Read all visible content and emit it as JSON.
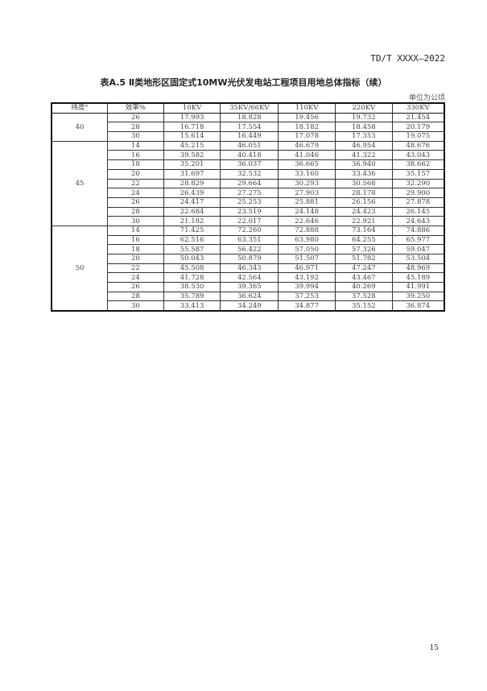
{
  "header": {
    "doc_code": "TD/T XXXX—2022"
  },
  "table": {
    "title": "表A.5 Ⅱ类地形区固定式10MW光伏发电站工程项目用地总体指标（续）",
    "unit": "单位为公顷",
    "columns": [
      "纬度°",
      "效率%",
      "10KV",
      "35KV/66KV",
      "110KV",
      "220KV",
      "330KV"
    ],
    "groups": [
      {
        "latitude": "40",
        "rows": [
          [
            "26",
            "17.993",
            "18.828",
            "19.456",
            "19.732",
            "21.454"
          ],
          [
            "28",
            "16.718",
            "17.554",
            "18.182",
            "18.458",
            "20.179"
          ],
          [
            "30",
            "15.614",
            "16.449",
            "17.078",
            "17.353",
            "19.075"
          ]
        ]
      },
      {
        "latitude": "45",
        "rows": [
          [
            "14",
            "45.215",
            "46.051",
            "46.679",
            "46.954",
            "48.676"
          ],
          [
            "16",
            "39.582",
            "40.418",
            "41.046",
            "41.322",
            "43.043"
          ],
          [
            "18",
            "35.201",
            "36.037",
            "36.665",
            "36.940",
            "38.662"
          ],
          [
            "20",
            "31.697",
            "32.532",
            "33.160",
            "33.436",
            "35.157"
          ],
          [
            "22",
            "28.829",
            "29.664",
            "30.293",
            "30.568",
            "32.290"
          ],
          [
            "24",
            "26.439",
            "27.275",
            "27.903",
            "28.178",
            "29.900"
          ],
          [
            "26",
            "24.417",
            "25.253",
            "25.881",
            "26.156",
            "27.878"
          ],
          [
            "28",
            "22.684",
            "23.519",
            "24.148",
            "24.423",
            "26.145"
          ],
          [
            "30",
            "21.182",
            "22.017",
            "22.646",
            "22.921",
            "24.643"
          ]
        ]
      },
      {
        "latitude": "50",
        "rows": [
          [
            "14",
            "71.425",
            "72.260",
            "72.888",
            "73.164",
            "74.886"
          ],
          [
            "16",
            "62.516",
            "63.351",
            "63.980",
            "64.255",
            "65.977"
          ],
          [
            "18",
            "55.587",
            "56.422",
            "57.050",
            "57.326",
            "59.047"
          ],
          [
            "20",
            "50.043",
            "50.879",
            "51.507",
            "51.782",
            "53.504"
          ],
          [
            "22",
            "45.508",
            "46.343",
            "46.971",
            "47.247",
            "48.969"
          ],
          [
            "24",
            "41.728",
            "42.564",
            "43.192",
            "43.467",
            "45.189"
          ],
          [
            "26",
            "38.530",
            "39.365",
            "39.994",
            "40.269",
            "41.991"
          ],
          [
            "28",
            "35.789",
            "36.624",
            "37.253",
            "37.528",
            "39.250"
          ],
          [
            "30",
            "33.413",
            "34.249",
            "34.877",
            "35.152",
            "36.874"
          ]
        ]
      }
    ]
  },
  "footer": {
    "page_number": "15"
  }
}
